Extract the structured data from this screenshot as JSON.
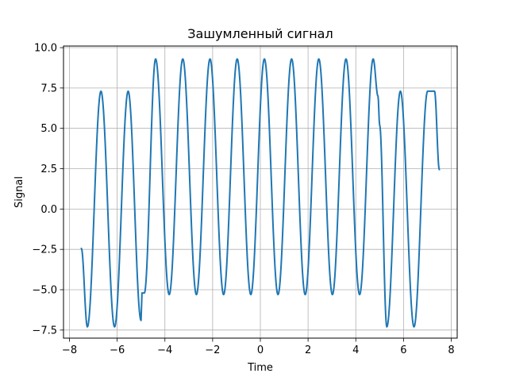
{
  "chart_data": {
    "type": "line",
    "title": "Зашумленный сигнал",
    "xlabel": "Time",
    "ylabel": "Signal",
    "xlim": [
      -8.25,
      8.25
    ],
    "ylim": [
      -8.0,
      10.1
    ],
    "xticks": [
      -8,
      -6,
      -4,
      -2,
      0,
      2,
      4,
      6,
      8
    ],
    "yticks": [
      -7.5,
      -5.0,
      -2.5,
      0.0,
      2.5,
      5.0,
      7.5,
      10.0
    ],
    "xtick_labels": [
      "−8",
      "−6",
      "−4",
      "−2",
      "0",
      "2",
      "4",
      "6",
      "8"
    ],
    "ytick_labels": [
      "−7.5",
      "−5.0",
      "−2.5",
      "0.0",
      "2.5",
      "5.0",
      "7.5",
      "10.0"
    ],
    "grid": true,
    "line_color": "#1f77b4",
    "series": [
      {
        "x": [
          -7.5,
          -7.25,
          -6.68,
          -6.11,
          -5.54,
          -5.0,
          -4.97,
          -4.96,
          -4.86,
          -4.39,
          -3.82,
          -3.25,
          -2.68,
          -2.11,
          -1.54,
          -0.97,
          -0.4,
          0.17,
          0.74,
          1.31,
          1.88,
          2.45,
          3.02,
          3.59,
          4.16,
          4.73,
          4.93,
          5.0,
          5.3,
          5.87,
          6.44,
          7.01,
          7.3,
          7.5
        ],
        "y": [
          -2.45,
          -7.3,
          7.3,
          -7.3,
          7.3,
          -6.9,
          -5.6,
          -5.2,
          -5.2,
          9.3,
          -5.3,
          9.3,
          -5.3,
          9.3,
          -5.3,
          9.3,
          -5.3,
          9.3,
          -5.3,
          9.3,
          -5.3,
          9.3,
          -5.3,
          9.3,
          -5.3,
          9.3,
          7.0,
          5.2,
          -7.3,
          7.3,
          -7.3,
          7.3,
          7.3,
          2.45
        ]
      }
    ]
  }
}
